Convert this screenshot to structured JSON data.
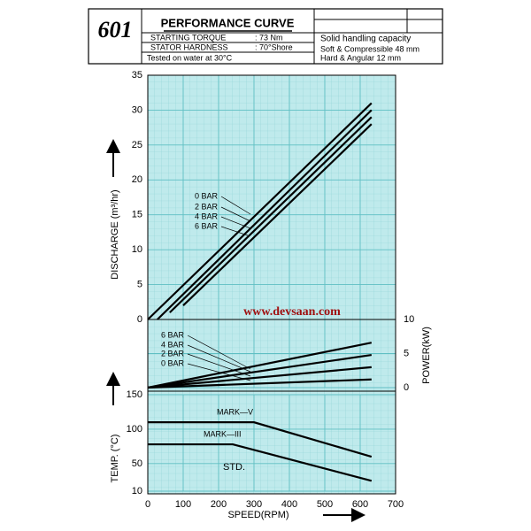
{
  "header": {
    "model": "601",
    "title": "PERFORMANCE CURVE",
    "rows": [
      [
        "STARTING TORQUE",
        ": 73 Nm"
      ],
      [
        "STATOR HARDNESS",
        ": 70°Shore"
      ]
    ],
    "note": "Tested on water at 30°C",
    "capacity": [
      "Solid handling capacity",
      "Soft & Compressible 48 mm",
      "Hard & Angular 12 mm"
    ]
  },
  "watermark": "www.devsaan.com",
  "chart_data": [
    {
      "type": "line",
      "ylabel": "DISCHARGE (m³/hr)",
      "xlim": [
        0,
        700
      ],
      "ylim": [
        0,
        35
      ],
      "yticks": [
        0,
        5,
        10,
        15,
        20,
        25,
        30,
        35
      ],
      "grid": true,
      "series": [
        {
          "name": "0 BAR",
          "color": "#000000",
          "x": [
            0,
            632
          ],
          "values": [
            0,
            31
          ]
        },
        {
          "name": "2 BAR",
          "color": "#000000",
          "x": [
            27,
            632
          ],
          "values": [
            0,
            30
          ]
        },
        {
          "name": "4 BAR",
          "color": "#000000",
          "x": [
            62,
            632
          ],
          "values": [
            1,
            29
          ]
        },
        {
          "name": "6 BAR",
          "color": "#000000",
          "x": [
            100,
            632
          ],
          "values": [
            2,
            28
          ]
        }
      ]
    },
    {
      "type": "line",
      "y2label": "POWER(kW)",
      "xlim": [
        0,
        700
      ],
      "y2lim": [
        0,
        10
      ],
      "y2ticks": [
        0,
        5,
        10
      ],
      "grid": true,
      "series": [
        {
          "name": "6 BAR",
          "color": "#000000",
          "axis": "y2",
          "x": [
            0,
            632
          ],
          "values": [
            0,
            6.6
          ]
        },
        {
          "name": "4 BAR",
          "color": "#000000",
          "axis": "y2",
          "x": [
            0,
            632
          ],
          "values": [
            0,
            4.8
          ]
        },
        {
          "name": "2 BAR",
          "color": "#000000",
          "axis": "y2",
          "x": [
            0,
            632
          ],
          "values": [
            0,
            3
          ]
        },
        {
          "name": "0 BAR",
          "color": "#000000",
          "axis": "y2",
          "x": [
            0,
            632
          ],
          "values": [
            0,
            1.2
          ]
        }
      ]
    },
    {
      "type": "line",
      "ylabel": "TEMP. (°C)",
      "xlabel": "SPEED(RPM)",
      "xlim": [
        0,
        700
      ],
      "xticks": [
        0,
        100,
        200,
        300,
        400,
        500,
        600,
        700
      ],
      "ylim": [
        10,
        150
      ],
      "yticks": [
        10,
        50,
        100,
        150
      ],
      "grid": true,
      "annotations": [
        "STD."
      ],
      "series": [
        {
          "name": "MARK—V",
          "color": "#000000",
          "x": [
            0,
            300,
            632
          ],
          "values": [
            110,
            110,
            60
          ]
        },
        {
          "name": "MARK—III",
          "color": "#000000",
          "x": [
            0,
            240,
            632
          ],
          "values": [
            78,
            78,
            25
          ]
        }
      ]
    }
  ]
}
